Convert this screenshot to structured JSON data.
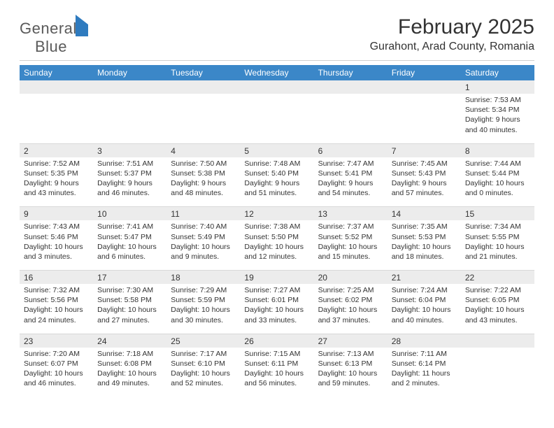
{
  "logo": {
    "word1": "General",
    "word2": "Blue"
  },
  "title": "February 2025",
  "location": "Gurahont, Arad County, Romania",
  "colors": {
    "header_bg": "#3b87c8",
    "header_text": "#ffffff",
    "daynum_bg": "#ececec",
    "text": "#333333",
    "rule": "#d8d8d8",
    "logo_gray": "#5a5a5a",
    "logo_blue": "#2f7bbf",
    "page_bg": "#ffffff"
  },
  "typography": {
    "title_fontsize": 30,
    "location_fontsize": 16,
    "dayheader_fontsize": 12,
    "daynum_fontsize": 12,
    "detail_fontsize": 10.5,
    "font_family": "Arial"
  },
  "day_names": [
    "Sunday",
    "Monday",
    "Tuesday",
    "Wednesday",
    "Thursday",
    "Friday",
    "Saturday"
  ],
  "weeks": [
    {
      "nums": [
        "",
        "",
        "",
        "",
        "",
        "",
        "1"
      ],
      "details": [
        "",
        "",
        "",
        "",
        "",
        "",
        "Sunrise: 7:53 AM\nSunset: 5:34 PM\nDaylight: 9 hours and 40 minutes."
      ]
    },
    {
      "nums": [
        "2",
        "3",
        "4",
        "5",
        "6",
        "7",
        "8"
      ],
      "details": [
        "Sunrise: 7:52 AM\nSunset: 5:35 PM\nDaylight: 9 hours and 43 minutes.",
        "Sunrise: 7:51 AM\nSunset: 5:37 PM\nDaylight: 9 hours and 46 minutes.",
        "Sunrise: 7:50 AM\nSunset: 5:38 PM\nDaylight: 9 hours and 48 minutes.",
        "Sunrise: 7:48 AM\nSunset: 5:40 PM\nDaylight: 9 hours and 51 minutes.",
        "Sunrise: 7:47 AM\nSunset: 5:41 PM\nDaylight: 9 hours and 54 minutes.",
        "Sunrise: 7:45 AM\nSunset: 5:43 PM\nDaylight: 9 hours and 57 minutes.",
        "Sunrise: 7:44 AM\nSunset: 5:44 PM\nDaylight: 10 hours and 0 minutes."
      ]
    },
    {
      "nums": [
        "9",
        "10",
        "11",
        "12",
        "13",
        "14",
        "15"
      ],
      "details": [
        "Sunrise: 7:43 AM\nSunset: 5:46 PM\nDaylight: 10 hours and 3 minutes.",
        "Sunrise: 7:41 AM\nSunset: 5:47 PM\nDaylight: 10 hours and 6 minutes.",
        "Sunrise: 7:40 AM\nSunset: 5:49 PM\nDaylight: 10 hours and 9 minutes.",
        "Sunrise: 7:38 AM\nSunset: 5:50 PM\nDaylight: 10 hours and 12 minutes.",
        "Sunrise: 7:37 AM\nSunset: 5:52 PM\nDaylight: 10 hours and 15 minutes.",
        "Sunrise: 7:35 AM\nSunset: 5:53 PM\nDaylight: 10 hours and 18 minutes.",
        "Sunrise: 7:34 AM\nSunset: 5:55 PM\nDaylight: 10 hours and 21 minutes."
      ]
    },
    {
      "nums": [
        "16",
        "17",
        "18",
        "19",
        "20",
        "21",
        "22"
      ],
      "details": [
        "Sunrise: 7:32 AM\nSunset: 5:56 PM\nDaylight: 10 hours and 24 minutes.",
        "Sunrise: 7:30 AM\nSunset: 5:58 PM\nDaylight: 10 hours and 27 minutes.",
        "Sunrise: 7:29 AM\nSunset: 5:59 PM\nDaylight: 10 hours and 30 minutes.",
        "Sunrise: 7:27 AM\nSunset: 6:01 PM\nDaylight: 10 hours and 33 minutes.",
        "Sunrise: 7:25 AM\nSunset: 6:02 PM\nDaylight: 10 hours and 37 minutes.",
        "Sunrise: 7:24 AM\nSunset: 6:04 PM\nDaylight: 10 hours and 40 minutes.",
        "Sunrise: 7:22 AM\nSunset: 6:05 PM\nDaylight: 10 hours and 43 minutes."
      ]
    },
    {
      "nums": [
        "23",
        "24",
        "25",
        "26",
        "27",
        "28",
        ""
      ],
      "details": [
        "Sunrise: 7:20 AM\nSunset: 6:07 PM\nDaylight: 10 hours and 46 minutes.",
        "Sunrise: 7:18 AM\nSunset: 6:08 PM\nDaylight: 10 hours and 49 minutes.",
        "Sunrise: 7:17 AM\nSunset: 6:10 PM\nDaylight: 10 hours and 52 minutes.",
        "Sunrise: 7:15 AM\nSunset: 6:11 PM\nDaylight: 10 hours and 56 minutes.",
        "Sunrise: 7:13 AM\nSunset: 6:13 PM\nDaylight: 10 hours and 59 minutes.",
        "Sunrise: 7:11 AM\nSunset: 6:14 PM\nDaylight: 11 hours and 2 minutes.",
        ""
      ]
    }
  ]
}
